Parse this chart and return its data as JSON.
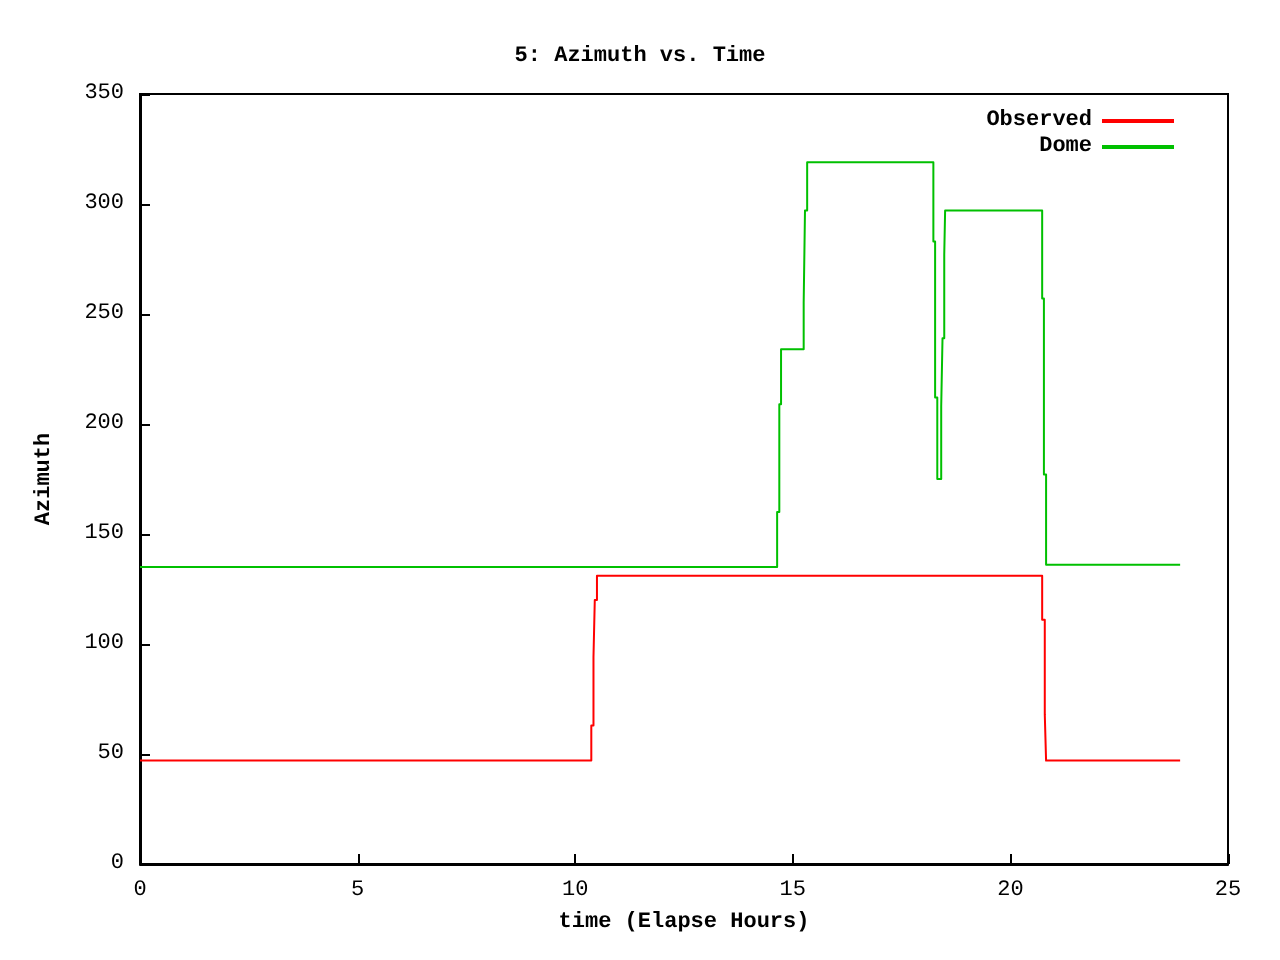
{
  "chart_data": {
    "type": "step",
    "title": "5: Azimuth vs. Time",
    "xlabel": "time (Elapse Hours)",
    "ylabel": "Azimuth",
    "xlim": [
      0,
      25
    ],
    "xticks": [
      0,
      5,
      10,
      15,
      20,
      25
    ],
    "ylim": [
      0,
      350
    ],
    "yticks": [
      0,
      50,
      100,
      150,
      200,
      250,
      300,
      350
    ],
    "grid": false,
    "legend": "top right",
    "marker": "none",
    "line_style": "solid",
    "series": [
      {
        "name": "Observed",
        "color": "#ff0000",
        "x": [
          0,
          10.37,
          10.42,
          10.45,
          10.5,
          20.73,
          20.79,
          20.82,
          23.9
        ],
        "values": [
          47,
          63,
          94,
          120,
          131,
          111,
          68,
          47,
          47
        ]
      },
      {
        "name": "Dome",
        "color": "#00c000",
        "x": [
          0,
          14.64,
          14.69,
          14.73,
          15.25,
          15.28,
          15.33,
          18.23,
          18.27,
          18.32,
          18.41,
          18.44,
          18.48,
          18.5,
          20.73,
          20.77,
          20.82,
          23.9
        ],
        "values": [
          135,
          160,
          209,
          234,
          255,
          297,
          319,
          283,
          212,
          175,
          208,
          239,
          277,
          297,
          257,
          177,
          136,
          136
        ]
      }
    ]
  }
}
